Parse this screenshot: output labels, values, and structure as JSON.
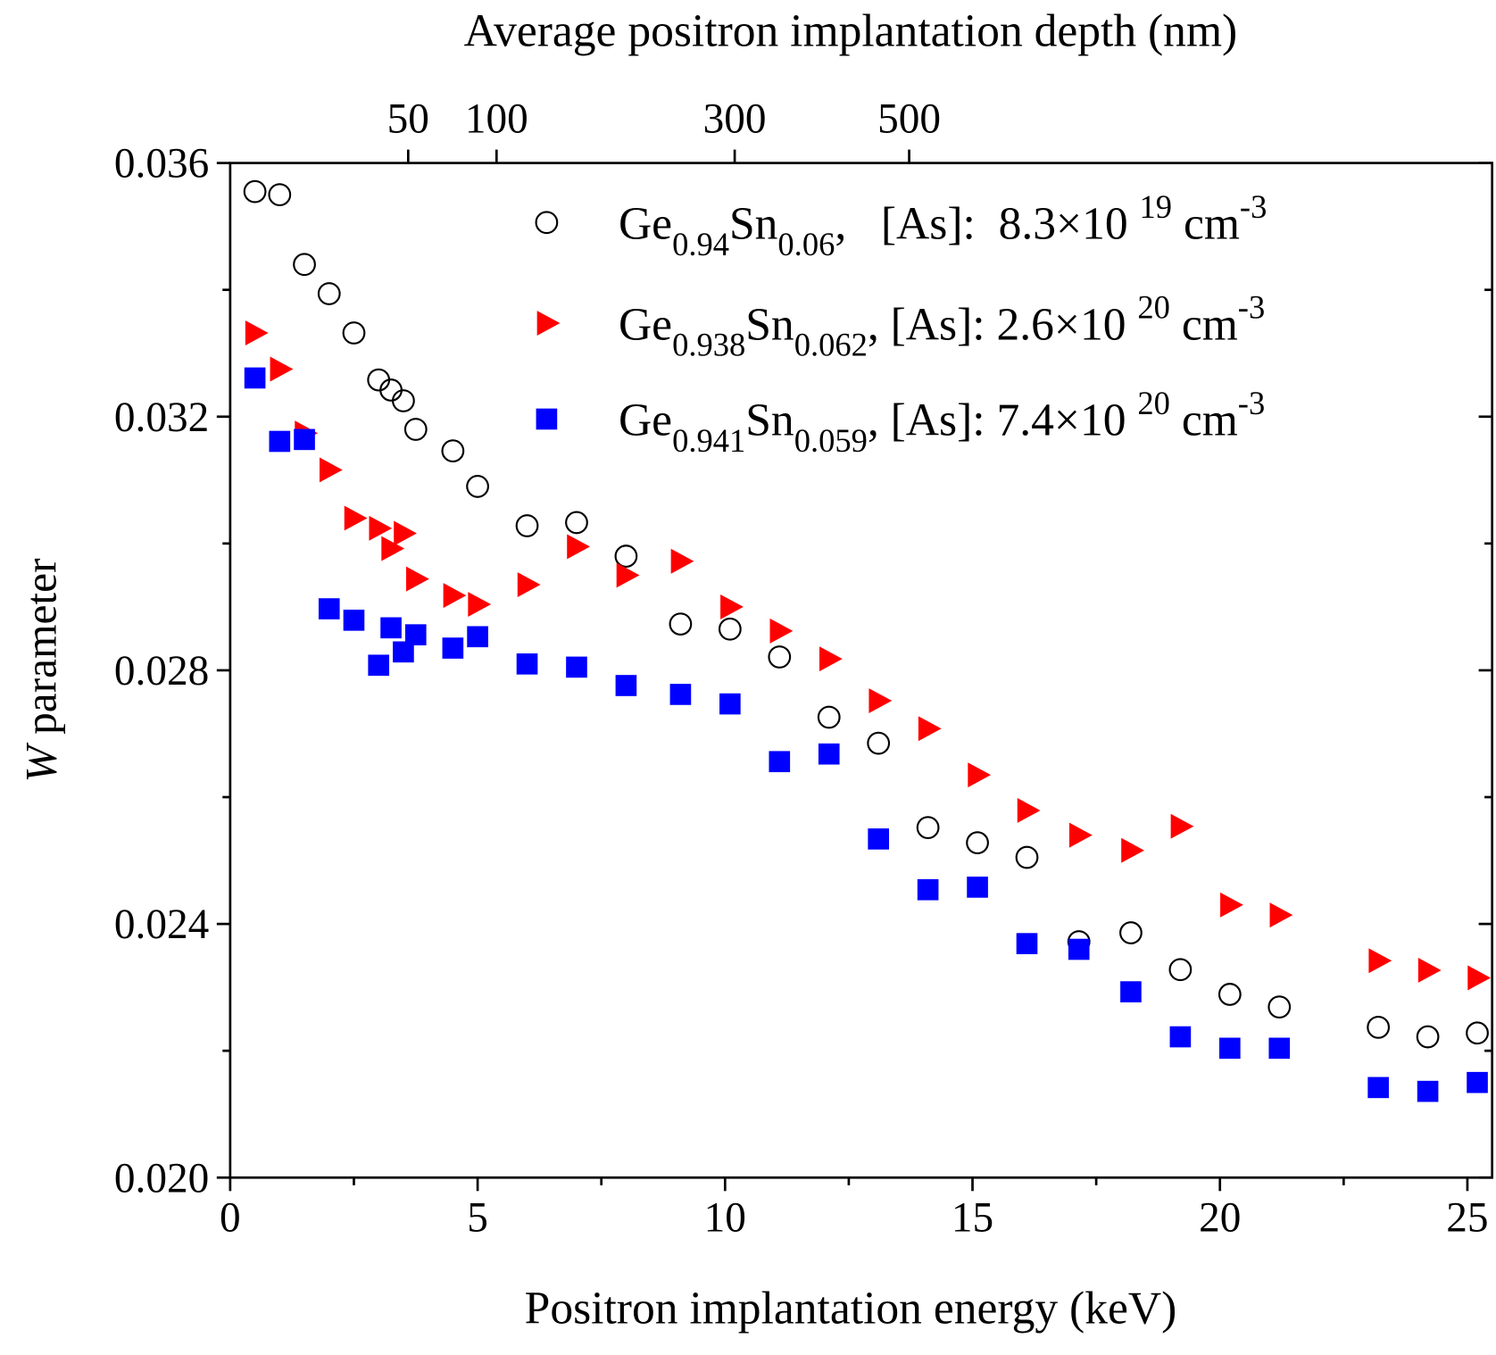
{
  "chart_data": {
    "type": "scatter",
    "xlabel": "Positron implantation energy (keV)",
    "ylabel": [
      {
        "text": "W",
        "italic": true
      },
      {
        "text": " parameter"
      }
    ],
    "x2label": "Average positron implantation depth (nm)",
    "xlim": [
      0,
      25.5
    ],
    "xticks": [
      0,
      5,
      10,
      15,
      20,
      25
    ],
    "xminor": [
      2.5,
      7.5,
      12.5,
      17.5,
      22.5
    ],
    "ylim": [
      0.02,
      0.036
    ],
    "yticks": [
      {
        "value": 0.02,
        "label": "0.020"
      },
      {
        "value": 0.024,
        "label": "0.024"
      },
      {
        "value": 0.028,
        "label": "0.028"
      },
      {
        "value": 0.032,
        "label": "0.032"
      },
      {
        "value": 0.036,
        "label": "0.036"
      }
    ],
    "yminor": [
      0.022,
      0.026,
      0.03,
      0.034
    ],
    "x2lim": [
      0,
      1452
    ],
    "x2scale": {
      "type": "power",
      "exponent": 1.72
    },
    "x2ticks": [
      50,
      100,
      300,
      500
    ],
    "legend": "top-right",
    "x": [
      0.5,
      1.0,
      1.5,
      2.0,
      2.5,
      3.0,
      3.25,
      3.5,
      3.75,
      4.5,
      5.0,
      6.0,
      7.0,
      8.0,
      9.1,
      10.1,
      11.1,
      12.1,
      13.1,
      14.1,
      15.1,
      16.1,
      17.15,
      18.2,
      19.2,
      20.2,
      21.2,
      23.2,
      24.2,
      25.2
    ],
    "series": [
      {
        "name": [
          {
            "text": "Ge"
          },
          {
            "text": "0.94",
            "shift": "sub"
          },
          {
            "text": "Sn"
          },
          {
            "text": "0.06",
            "shift": "sub"
          },
          {
            "text": ",   [As]:  8.3×10 "
          },
          {
            "text": "19",
            "shift": "super"
          },
          {
            "text": " cm"
          },
          {
            "text": "-3",
            "shift": "super"
          }
        ],
        "marker": "circle",
        "color": "#000000",
        "filled": false,
        "values": [
          0.03555,
          0.0355,
          0.0344,
          0.03394,
          0.03332,
          0.03258,
          0.03242,
          0.03225,
          0.0318,
          0.03146,
          0.0309,
          0.03028,
          0.03033,
          0.0298,
          0.02873,
          0.02865,
          0.02821,
          0.02726,
          0.02685,
          0.02552,
          0.02528,
          0.02505,
          0.02372,
          0.02386,
          0.02328,
          0.02289,
          0.02269,
          0.02237,
          0.02222,
          0.02228
        ]
      },
      {
        "name": [
          {
            "text": "Ge"
          },
          {
            "text": "0.938",
            "shift": "sub"
          },
          {
            "text": "Sn"
          },
          {
            "text": "0.062",
            "shift": "sub"
          },
          {
            "text": ", [As]: 2.6×10 "
          },
          {
            "text": "20",
            "shift": "super"
          },
          {
            "text": " cm"
          },
          {
            "text": "-3",
            "shift": "super"
          }
        ],
        "marker": "triangle-right",
        "color": "#ff0000",
        "filled": true,
        "values": [
          0.03332,
          0.03275,
          0.03174,
          0.03116,
          0.0304,
          0.03024,
          0.02992,
          0.03016,
          0.02944,
          0.02918,
          0.02904,
          0.02935,
          0.02995,
          0.0295,
          0.02972,
          0.029,
          0.02862,
          0.02818,
          0.02752,
          0.02708,
          0.02635,
          0.02579,
          0.0254,
          0.02516,
          0.02554,
          0.0243,
          0.02414,
          0.02342,
          0.02327,
          0.02315
        ]
      },
      {
        "name": [
          {
            "text": "Ge"
          },
          {
            "text": "0.941",
            "shift": "sub"
          },
          {
            "text": "Sn"
          },
          {
            "text": "0.059",
            "shift": "sub"
          },
          {
            "text": ", [As]: 7.4×10 "
          },
          {
            "text": "20",
            "shift": "super"
          },
          {
            "text": " cm"
          },
          {
            "text": "-3",
            "shift": "super"
          }
        ],
        "marker": "square",
        "color": "#0000ff",
        "filled": true,
        "values": [
          0.03261,
          0.03161,
          0.03164,
          0.02897,
          0.02879,
          0.02808,
          0.02867,
          0.02829,
          0.02856,
          0.02835,
          0.02853,
          0.0281,
          0.02805,
          0.02776,
          0.02762,
          0.02747,
          0.02656,
          0.02668,
          0.02534,
          0.02454,
          0.02458,
          0.02369,
          0.0236,
          0.02293,
          0.02222,
          0.02204,
          0.02204,
          0.02142,
          0.02136,
          0.0215
        ]
      }
    ]
  }
}
